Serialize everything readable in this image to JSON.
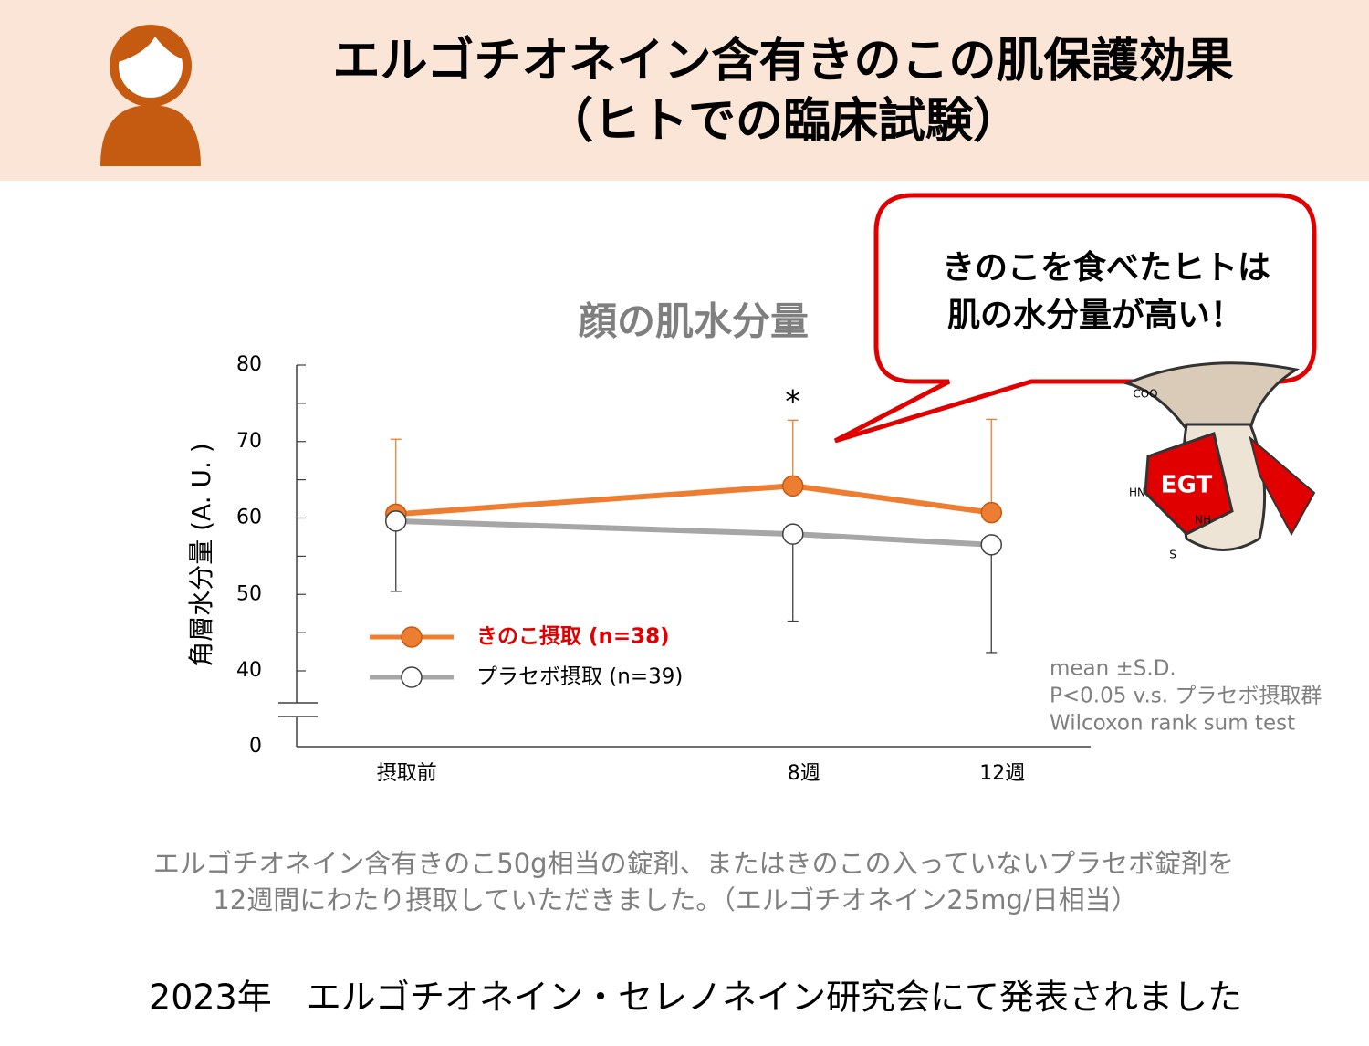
{
  "header": {
    "title_lines": [
      "エルゴチオネイン含有きのこの肌保護効果",
      "（ヒトでの臨床試験）"
    ]
  },
  "callout": {
    "lines": [
      "きのこを食べたヒトは",
      "肌の水分量が高い！"
    ]
  },
  "character": {
    "label": "EGT",
    "formula_labels": [
      "COO",
      "HN",
      "NH",
      "S"
    ]
  },
  "chart_data": {
    "type": "line",
    "title": "顔の肌水分量",
    "y_label": "角層水分量 (A. U. )",
    "x": [
      0,
      8,
      12
    ],
    "xlim": [
      -2,
      14
    ],
    "xticks": [
      {
        "value": 0,
        "label": "摂取前"
      },
      {
        "value": 8,
        "label": "8週"
      },
      {
        "value": 12,
        "label": "12週"
      }
    ],
    "ylim": [
      40,
      80
    ],
    "yticks": [
      0,
      40,
      50,
      60,
      70,
      80
    ],
    "minor_yticks": [
      45,
      55,
      65,
      75
    ],
    "y_break": true,
    "series": [
      {
        "name": "きのこ摂取 (n=38)",
        "color": "#ed7d31",
        "marker_fill": "#ed7d31",
        "marker_stroke": "#c55a11",
        "legend_text_color": "#e00000",
        "legend_bold": true,
        "values": [
          60.5,
          64.2,
          60.7
        ],
        "errors": [
          9.8,
          8.6,
          12.2
        ],
        "error_direction": "upper"
      },
      {
        "name": "プラセボ摂取 (n=39)",
        "color": "#a6a6a6",
        "marker_fill": "#ffffff",
        "marker_stroke": "#404040",
        "legend_text_color": "#000000",
        "legend_bold": false,
        "values": [
          59.6,
          57.9,
          56.5
        ],
        "errors": [
          9.2,
          11.4,
          14.1
        ],
        "error_direction": "lower"
      }
    ],
    "annotations": [
      {
        "x": 8,
        "text": "*"
      }
    ],
    "notes": [
      "mean ±S.D.",
      "P<0.05 v.s. プラセボ摂取群",
      "Wilcoxon rank sum test"
    ]
  },
  "description": [
    "エルゴチオネイン含有きのこ50g相当の錠剤、またはきのこの入っていないプラセボ錠剤を",
    "12週間にわたり摂取していただきました。（エルゴチオネイン25mg/日相当）"
  ],
  "footer": "2023年　エルゴチオネイン・セレノネイン研究会にて発表されました"
}
